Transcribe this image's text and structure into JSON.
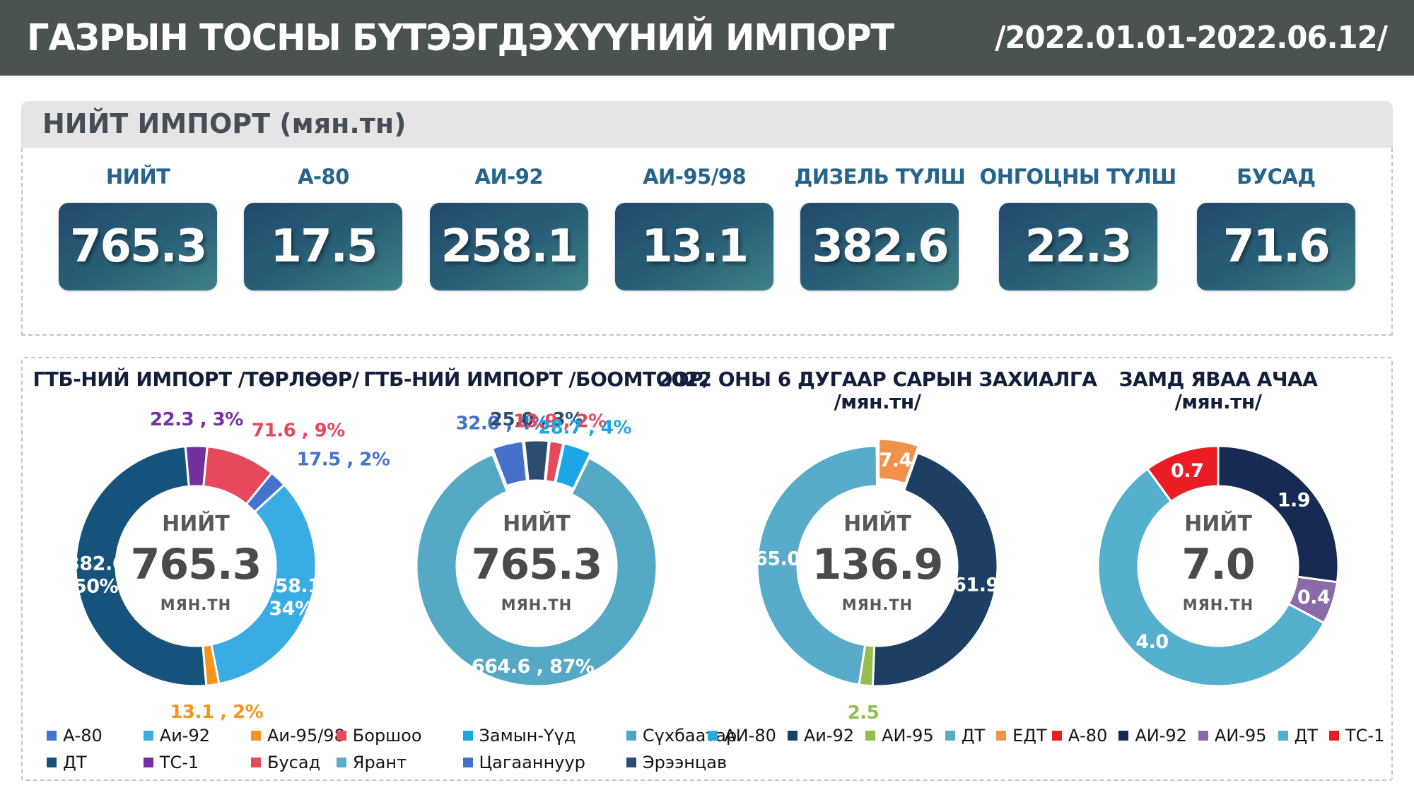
{
  "header": {
    "title": "ГАЗРЫН ТОСНЫ БҮТЭЭГДЭХҮҮНИЙ ИМПОРТ",
    "period": "/2022.01.01-2022.06.12/"
  },
  "summary": {
    "section_title": "НИЙТ ИМПОРТ (мян.тн)",
    "cards": [
      {
        "label": "НИЙТ",
        "value": "765.3"
      },
      {
        "label": "А-80",
        "value": "17.5"
      },
      {
        "label": "АИ-92",
        "value": "258.1"
      },
      {
        "label": "АИ-95/98",
        "value": "13.1"
      },
      {
        "label": "ДИЗЕЛЬ ТҮЛШ",
        "value": "382.6"
      },
      {
        "label": "ОНГОЦНЫ ТҮЛШ",
        "value": "22.3"
      },
      {
        "label": "БУСАД",
        "value": "71.6"
      }
    ]
  },
  "chart_data": [
    {
      "type": "donut",
      "title": "ГТБ-НИЙ ИМПОРТ /ТӨРЛӨӨР/",
      "subtitle": "",
      "center": {
        "label": "НИЙТ",
        "value": "765.3",
        "unit": "МЯН.ТН"
      },
      "start_angle": -5,
      "legend_layout": "grid",
      "slices": [
        {
          "name": "ТС-1",
          "value": 22.3,
          "pct": "3%",
          "color": "#7530A0",
          "label": [
            "22.3 , 3%"
          ],
          "label_pos": "out",
          "explode": 0
        },
        {
          "name": "Бусад",
          "value": 71.6,
          "pct": "9%",
          "color": "#E6495B",
          "label": [
            "71.6 , 9%"
          ],
          "label_pos": "out",
          "explode": 0
        },
        {
          "name": "А-80",
          "value": 17.5,
          "pct": "2%",
          "color": "#4673CE",
          "label": [
            "17.5 , 2%"
          ],
          "label_pos": "out",
          "explode": 0
        },
        {
          "name": "Аи-92",
          "value": 258.1,
          "pct": "34%",
          "color": "#39ACE4",
          "label": [
            "258.1",
            "34%"
          ],
          "label_pos": "in",
          "explode": 0
        },
        {
          "name": "Аи-95/98",
          "value": 13.1,
          "pct": "2%",
          "color": "#F7941D",
          "label": [
            "13.1 , 2%"
          ],
          "label_pos": "out",
          "explode": 0
        },
        {
          "name": "ДТ",
          "value": 382.6,
          "pct": "50%",
          "color": "#15537D",
          "label": [
            "382.6",
            "50%"
          ],
          "label_pos": "in",
          "explode": 0
        }
      ],
      "legend": [
        {
          "label": "А-80",
          "color": "#4673CE"
        },
        {
          "label": "Аи-92",
          "color": "#39ACE4"
        },
        {
          "label": "Аи-95/98",
          "color": "#F7941D"
        },
        {
          "label": "ДТ",
          "color": "#15537D"
        },
        {
          "label": "ТС-1",
          "color": "#7530A0"
        },
        {
          "label": "Бусад",
          "color": "#E6495B"
        }
      ]
    },
    {
      "type": "donut",
      "title": "ГТБ-НИЙ ИМПОРТ /БООМТООР/",
      "subtitle": "",
      "center": {
        "label": "НИЙТ",
        "value": "765.3",
        "unit": "МЯН.ТН"
      },
      "start_angle": -21,
      "legend_layout": "grid",
      "slices": [
        {
          "name": "Цагааннуур",
          "value": 32.0,
          "pct": "4%",
          "color": "#4570C9",
          "label": [
            "32.0 , 4%"
          ],
          "label_pos": "out",
          "explode": 8
        },
        {
          "name": "Эрээнцав",
          "value": 25.0,
          "pct": "3%",
          "color": "#2C4C70",
          "label": [
            "25.0 , 3%"
          ],
          "label_pos": "out",
          "explode": 8
        },
        {
          "name": "Боршоо",
          "value": 13.9,
          "pct": "2%",
          "color": "#E6495B",
          "label": [
            "13.9 , 2%"
          ],
          "label_pos": "out",
          "explode": 8
        },
        {
          "name": "Замын-Үүд",
          "value": 28.7,
          "pct": "4%",
          "color": "#1BA6E5",
          "label": [
            "28.7 , 4%"
          ],
          "label_pos": "out",
          "explode": 8
        },
        {
          "name": "Сүхбаатар",
          "value": 664.6,
          "pct": "87%",
          "color": "#55A9C4",
          "label": [
            "664.6 , 87%"
          ],
          "label_pos": "in",
          "explode": 0
        },
        {
          "name": "Ярант",
          "value": 1.1,
          "pct": "",
          "color": "#55A9C4",
          "label": [],
          "label_pos": "in",
          "explode": 0
        }
      ],
      "legend": [
        {
          "label": "Боршоо",
          "color": "#E6495B"
        },
        {
          "label": "Замын-Үүд",
          "color": "#1BA6E5"
        },
        {
          "label": "Сүхбаатар",
          "color": "#4FA5C4"
        },
        {
          "label": "Ярант",
          "color": "#55AFC9"
        },
        {
          "label": "Цагааннуур",
          "color": "#4570C9"
        },
        {
          "label": "Эрээнцав",
          "color": "#2C4C70"
        }
      ]
    },
    {
      "type": "donut",
      "title": "2022 ОНЫ 6 ДУГААР САРЫН ЗАХИАЛГА",
      "subtitle": "/мян.тн/",
      "center": {
        "label": "НИЙТ",
        "value": "136.9",
        "unit": "МЯН.ТН"
      },
      "start_angle": 0,
      "legend_layout": "row",
      "slices": [
        {
          "name": "ЕДТ",
          "value": 7.4,
          "pct": "",
          "color": "#F0924C",
          "label": [
            "7.4"
          ],
          "label_pos": "in",
          "explode": 10
        },
        {
          "name": "Аи-92",
          "value": 61.9,
          "pct": "",
          "color": "#1C3F63",
          "label": [
            "61.9"
          ],
          "label_pos": "in",
          "explode": 0
        },
        {
          "name": "АИ-95",
          "value": 2.5,
          "pct": "",
          "color": "#94BE4F",
          "label": [
            "2.5"
          ],
          "label_pos": "out",
          "explode": 0
        },
        {
          "name": "ДТ",
          "value": 65.0,
          "pct": "",
          "color": "#58ACCA",
          "label": [
            "65.0"
          ],
          "label_pos": "in",
          "explode": 0
        },
        {
          "name": "АИ-80",
          "value": 0.1,
          "pct": "",
          "color": "#29ABE2",
          "label": [],
          "label_pos": "in",
          "explode": 0
        }
      ],
      "legend": [
        {
          "label": "АИ-80",
          "color": "#29ABE2"
        },
        {
          "label": "Аи-92",
          "color": "#1C3F63"
        },
        {
          "label": "АИ-95",
          "color": "#94BE4F"
        },
        {
          "label": "ДТ",
          "color": "#58ACCA"
        },
        {
          "label": "ЕДТ",
          "color": "#F0924C"
        }
      ]
    },
    {
      "type": "donut",
      "title": "ЗАМД ЯВАА АЧАА",
      "subtitle": "/мян.тн/",
      "center": {
        "label": "НИЙТ",
        "value": "7.0",
        "unit": "МЯН.ТН"
      },
      "start_angle": 0,
      "legend_layout": "row",
      "slices": [
        {
          "name": "АИ-92",
          "value": 1.9,
          "pct": "",
          "color": "#172A54",
          "label": [
            "1.9"
          ],
          "label_pos": "in",
          "explode": 0
        },
        {
          "name": "АИ-95",
          "value": 0.4,
          "pct": "",
          "color": "#8A6BAA",
          "label": [
            "0.4"
          ],
          "label_pos": "in",
          "explode": 0
        },
        {
          "name": "ДТ",
          "value": 4.0,
          "pct": "",
          "color": "#55B0CE",
          "label": [
            "4.0"
          ],
          "label_pos": "in",
          "explode": 0
        },
        {
          "name": "А-80",
          "value": 0.7,
          "pct": "",
          "color": "#EC1C24",
          "label": [
            "0.7"
          ],
          "label_pos": "in",
          "explode": 0
        },
        {
          "name": "ТС-1",
          "value": 0,
          "pct": "",
          "color": "#EC1C24",
          "label": [],
          "label_pos": "in",
          "explode": 0
        }
      ],
      "legend": [
        {
          "label": "А-80",
          "color": "#EC1C24"
        },
        {
          "label": "АИ-92",
          "color": "#172A54"
        },
        {
          "label": "АИ-95",
          "color": "#8A6BAA"
        },
        {
          "label": "ДТ",
          "color": "#55B0CE"
        },
        {
          "label": "ТС-1",
          "color": "#EC1C24"
        }
      ]
    }
  ],
  "colors": {
    "header_bg": "#4B534F",
    "section_header_bg": "#E5E5E5",
    "card_gradient_start": "#21496B",
    "card_gradient_end": "#3E8184",
    "center_text": "#4A4A4A",
    "center_muted": "#595959"
  }
}
